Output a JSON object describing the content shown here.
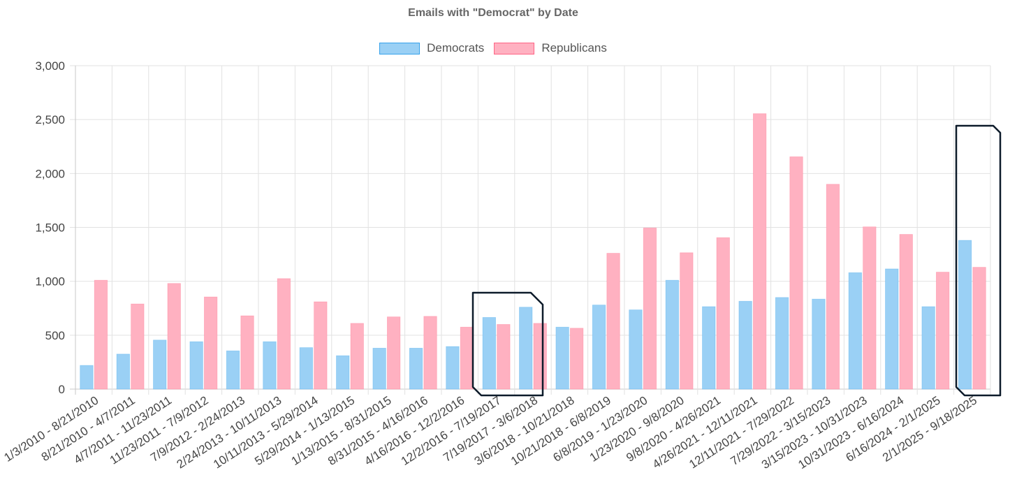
{
  "chart_data": {
    "type": "bar",
    "title": "Emails with \"Democrat\" by Date",
    "xlabel": "",
    "ylabel": "",
    "ylim": [
      0,
      3000
    ],
    "yticks": [
      "0",
      "500",
      "1,000",
      "1,500",
      "2,000",
      "2,500",
      "3,000"
    ],
    "ytick_values": [
      0,
      500,
      1000,
      1500,
      2000,
      2500,
      3000
    ],
    "grid": true,
    "legend_position": "top-center",
    "categories": [
      "1/3/2010 - 8/21/2010",
      "8/21/2010 - 4/7/2011",
      "4/7/2011 - 11/23/2011",
      "11/23/2011 - 7/9/2012",
      "7/9/2012 - 2/24/2013",
      "2/24/2013 - 10/11/2013",
      "10/11/2013 - 5/29/2014",
      "5/29/2014 - 1/13/2015",
      "1/13/2015 - 8/31/2015",
      "8/31/2015 - 4/16/2016",
      "4/16/2016 - 12/2/2016",
      "12/2/2016 - 7/19/2017",
      "7/19/2017 - 3/6/2018",
      "3/6/2018 - 10/21/2018",
      "10/21/2018 - 6/8/2019",
      "6/8/2019 - 1/23/2020",
      "1/23/2020 - 9/8/2020",
      "9/8/2020 - 4/26/2021",
      "4/26/2021 - 12/11/2021",
      "12/11/2021 - 7/29/2022",
      "7/29/2022 - 3/15/2023",
      "3/15/2023 - 10/31/2023",
      "10/31/2023 - 6/16/2024",
      "6/16/2024 - 2/1/2025",
      "2/1/2025 - 9/18/2025"
    ],
    "series": [
      {
        "name": "Democrats",
        "color": "#9ad0f5",
        "border_color": "#36a2eb",
        "values": [
          220,
          325,
          455,
          440,
          355,
          440,
          385,
          310,
          380,
          380,
          395,
          665,
          760,
          575,
          780,
          735,
          1010,
          765,
          815,
          850,
          835,
          1080,
          1115,
          765,
          1380
        ]
      },
      {
        "name": "Republicans",
        "color": "#ffb1c1",
        "border_color": "#ff6384",
        "values": [
          1010,
          790,
          980,
          855,
          680,
          1025,
          810,
          610,
          670,
          675,
          575,
          600,
          610,
          565,
          1260,
          1495,
          1265,
          1405,
          2555,
          2155,
          1900,
          1505,
          1435,
          1085,
          1130
        ]
      }
    ],
    "highlight_color": "#0d1b2a"
  }
}
